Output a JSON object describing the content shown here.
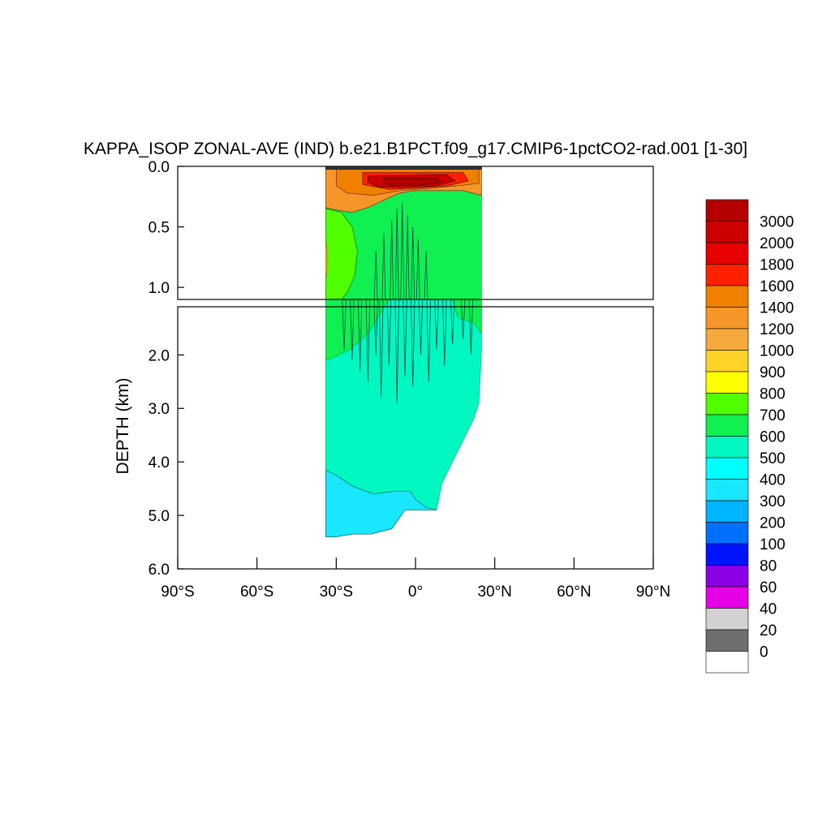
{
  "chart_data": {
    "type": "heatmap",
    "title": "KAPPA_ISOP ZONAL-AVE (IND) b.e21.B1PCT.f09_g17.CMIP6-1pctCO2-rad.001 [1-30]",
    "ylabel": "DEPTH (km)",
    "xlabel": "",
    "xlim": [
      -90,
      90
    ],
    "x_ticks": [
      {
        "value": -90,
        "label": "90°S"
      },
      {
        "value": -60,
        "label": "60°S"
      },
      {
        "value": -30,
        "label": "30°S"
      },
      {
        "value": 0,
        "label": "0°"
      },
      {
        "value": 30,
        "label": "30°N"
      },
      {
        "value": 60,
        "label": "60°N"
      },
      {
        "value": 90,
        "label": "90°N"
      }
    ],
    "upper_panel": {
      "ylim": [
        0.0,
        1.1
      ],
      "y_ticks": [
        {
          "value": 0.0,
          "label": "0.0"
        },
        {
          "value": 0.5,
          "label": "0.5"
        },
        {
          "value": 1.0,
          "label": "1.0"
        }
      ]
    },
    "lower_panel": {
      "ylim": [
        1.1,
        6.0
      ],
      "y_ticks": [
        {
          "value": 2.0,
          "label": "2.0"
        },
        {
          "value": 3.0,
          "label": "3.0"
        },
        {
          "value": 4.0,
          "label": "4.0"
        },
        {
          "value": 5.0,
          "label": "5.0"
        },
        {
          "value": 6.0,
          "label": "6.0"
        }
      ]
    },
    "data_extent": {
      "lat_min": -34,
      "lat_max": 25,
      "max_depth_km": 5.4
    },
    "colorbar": {
      "labels": [
        "3000",
        "2000",
        "1800",
        "1600",
        "1400",
        "1200",
        "1000",
        "900",
        "800",
        "700",
        "600",
        "500",
        "400",
        "300",
        "200",
        "100",
        "80",
        "60",
        "40",
        "20",
        "0"
      ],
      "colors": [
        "#b40000",
        "#cd0000",
        "#e60000",
        "#ff2000",
        "#f08000",
        "#f79628",
        "#f5a83c",
        "#ffd328",
        "#ffff00",
        "#50ff00",
        "#10f050",
        "#00f8c0",
        "#00ffff",
        "#19e6ff",
        "#00b4ff",
        "#0070ff",
        "#0014ff",
        "#8c00e6",
        "#e600e6",
        "#d2d2d2",
        "#6e6e6e",
        "#ffffff"
      ]
    },
    "regions": [
      {
        "level": "600",
        "color": "#00f8c0",
        "lat": [
          -34,
          25
        ],
        "depth": [
          1.1,
          5.4
        ]
      },
      {
        "level": "700",
        "color": "#10f050",
        "lat": [
          -34,
          25
        ],
        "depth": [
          0.2,
          1.1
        ]
      },
      {
        "level": "800",
        "color": "#50ff00",
        "lat": [
          -34,
          -21
        ],
        "depth": [
          0.35,
          1.1
        ]
      },
      {
        "level": "1200",
        "color": "#f79628",
        "lat": [
          -34,
          25
        ],
        "depth": [
          0.0,
          0.3
        ]
      },
      {
        "level": "2000",
        "color": "#cd0000",
        "lat": [
          -18,
          12
        ],
        "depth": [
          0.08,
          0.18
        ]
      },
      {
        "level": "3000",
        "color": "#b40000",
        "lat": [
          -12,
          8
        ],
        "depth": [
          0.1,
          0.16
        ]
      },
      {
        "level": "400",
        "color": "#19e6ff",
        "lat": [
          -34,
          0
        ],
        "depth": [
          4.6,
          5.4
        ]
      }
    ]
  }
}
